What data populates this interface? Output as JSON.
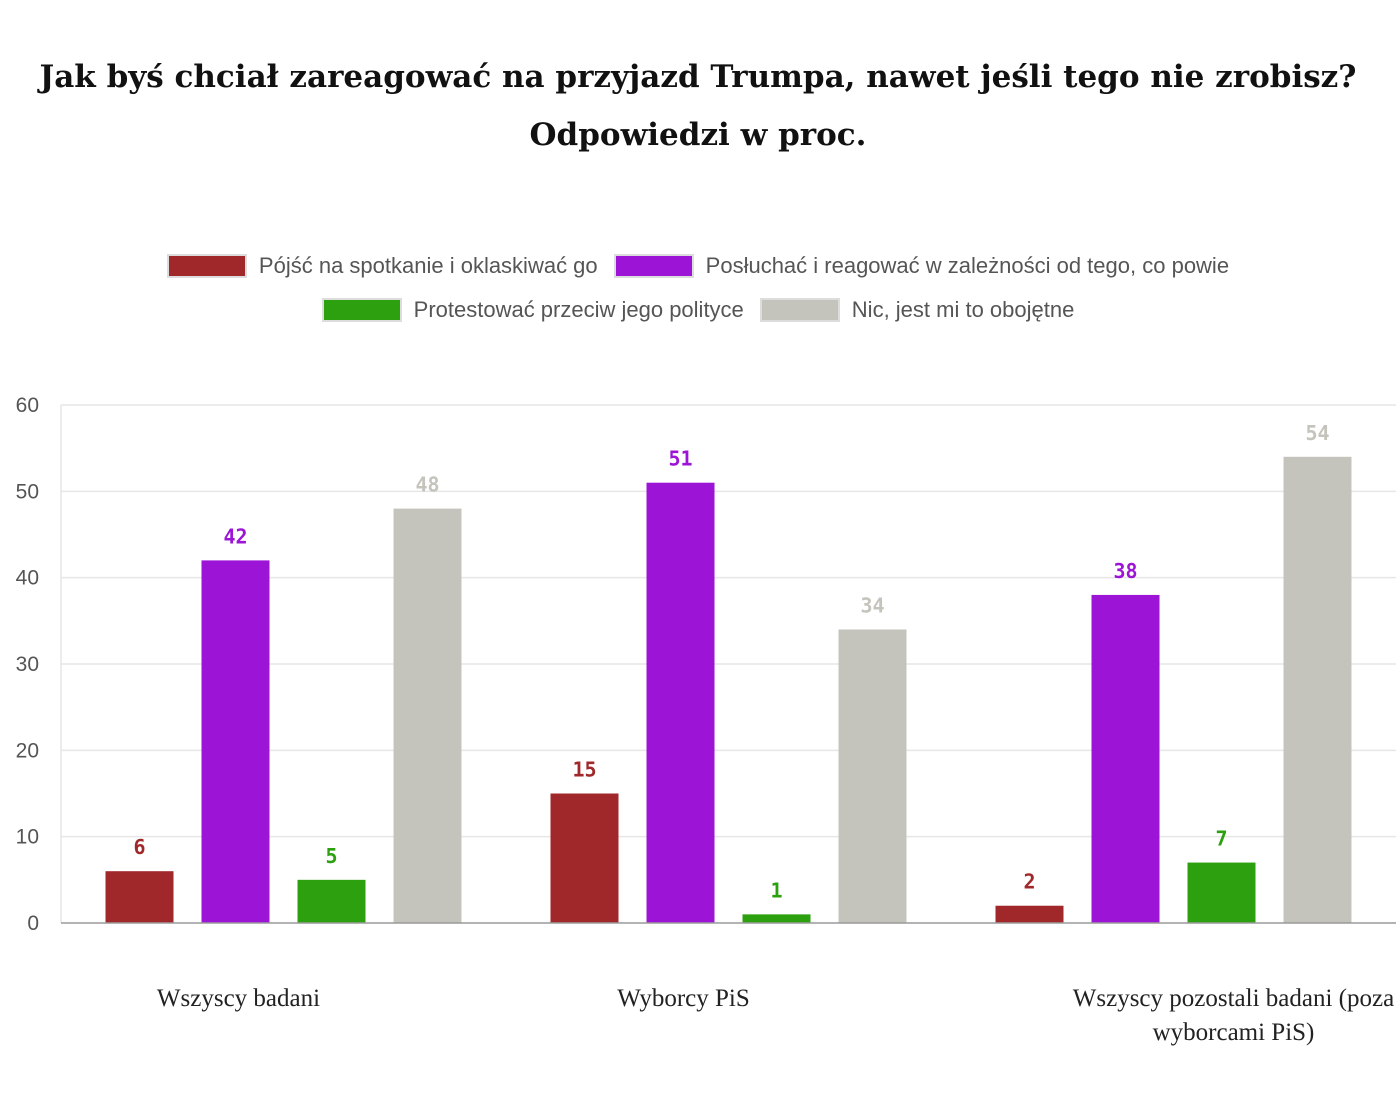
{
  "chart_data": {
    "type": "bar",
    "title_line1": "Jak byś chciał zareagować na przyjazd Trumpa, nawet jeśli tego nie zrobisz?",
    "title_line2": "Odpowiedzi w proc.",
    "categories": [
      [
        "Wszyscy badani"
      ],
      [
        "Wyborcy PiS"
      ],
      [
        "Wszyscy pozostali badani (poza",
        "wyborcami PiS)"
      ]
    ],
    "series": [
      {
        "name": "Pójść na spotkanie i oklaskiwać go",
        "color": "#A0282A",
        "values": [
          6,
          15,
          2
        ]
      },
      {
        "name": "Posłuchać i reagować w zależności od tego, co powie",
        "color": "#9C14D6",
        "values": [
          42,
          51,
          38
        ]
      },
      {
        "name": "Protestować przeciw jego polityce",
        "color": "#2CA00E",
        "values": [
          5,
          1,
          7
        ]
      },
      {
        "name": "Nic, jest mi to obojętne",
        "color": "#C4C4BC",
        "values": [
          48,
          34,
          54
        ]
      }
    ],
    "yticks": [
      "0",
      "10",
      "20",
      "30",
      "40",
      "50",
      "60"
    ],
    "ylim": [
      0,
      60
    ],
    "xlabel": "",
    "ylabel": "",
    "legend_position": "top",
    "grid": true
  }
}
